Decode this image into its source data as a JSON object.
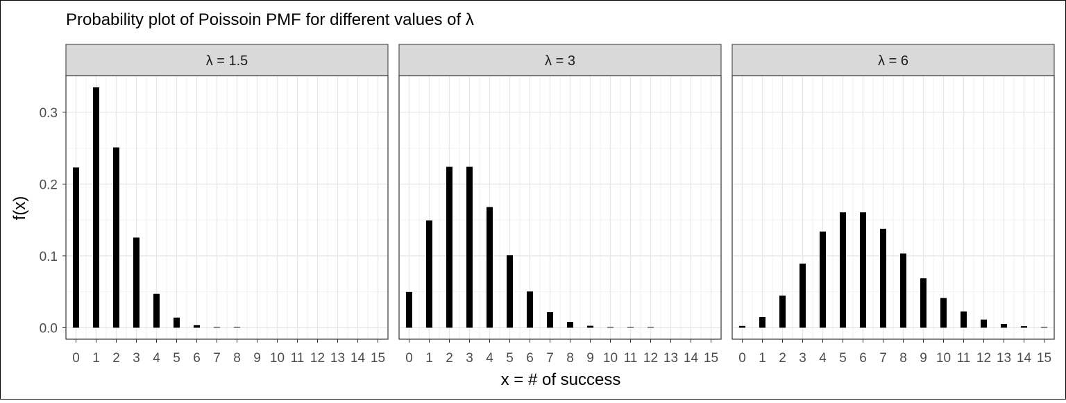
{
  "chart_data": {
    "type": "bar",
    "title": "Probability plot of Poissoin PMF for different values of λ",
    "xlabel": "x = # of success",
    "ylabel": "f(x)",
    "x": [
      0,
      1,
      2,
      3,
      4,
      5,
      6,
      7,
      8,
      9,
      10,
      11,
      12,
      13,
      14,
      15
    ],
    "y_ticks": [
      "0.0",
      "0.1",
      "0.2",
      "0.3"
    ],
    "ylim": [
      -0.016,
      0.351
    ],
    "xlim": [
      -0.5,
      15.5
    ],
    "grid": true,
    "legend": "none",
    "bar_color": "#000000",
    "strip_color": "#d9d9d9",
    "panels": [
      {
        "strip_label": "λ = 1.5",
        "values": [
          0.2231,
          0.3347,
          0.251,
          0.1255,
          0.0471,
          0.0141,
          0.0035,
          0.0008,
          0.0001,
          0.0,
          0.0,
          0.0,
          0.0,
          0.0,
          0.0,
          0.0
        ]
      },
      {
        "strip_label": "λ = 3",
        "values": [
          0.0498,
          0.1494,
          0.224,
          0.224,
          0.168,
          0.1008,
          0.0504,
          0.0216,
          0.0081,
          0.0027,
          0.0008,
          0.0002,
          0.0001,
          0.0,
          0.0,
          0.0
        ]
      },
      {
        "strip_label": "λ = 6",
        "values": [
          0.0025,
          0.0149,
          0.0446,
          0.0892,
          0.1339,
          0.1606,
          0.1606,
          0.1377,
          0.1033,
          0.0688,
          0.0413,
          0.0225,
          0.0113,
          0.0052,
          0.0022,
          0.0009
        ]
      }
    ]
  }
}
